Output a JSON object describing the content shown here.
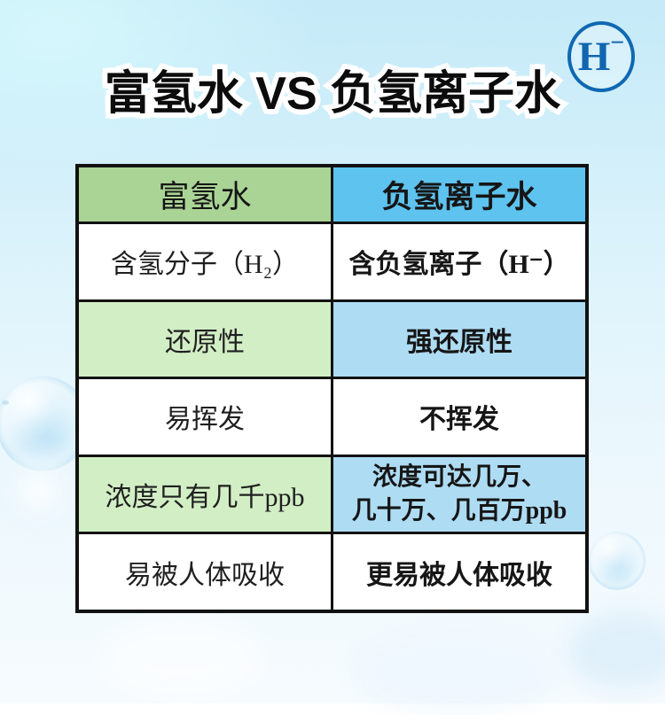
{
  "title": "富氢水 VS 负氢离子水",
  "badge": {
    "letter": "H",
    "charge": "−"
  },
  "chart_data": {
    "type": "table",
    "title": "富氢水 VS 负氢离子水",
    "columns": [
      "富氢水",
      "负氢离子水"
    ],
    "rows": [
      [
        "含氢分子（H₂）",
        "含负氢离子（H⁻）"
      ],
      [
        "还原性",
        "强还原性"
      ],
      [
        "易挥发",
        "不挥发"
      ],
      [
        "浓度只有几千ppb",
        "浓度可达几万、几十万、几百万ppb"
      ],
      [
        "易被人体吸收",
        "更易被人体吸收"
      ]
    ]
  },
  "table_display": {
    "row4_right_line1": "浓度可达几万、",
    "row4_right_line2": "几十万、几百万ppb"
  },
  "colors": {
    "background_top": "#c6eaf8",
    "background_bottom": "#f6fbfe",
    "header_green": "#aad496",
    "header_blue": "#5ec3ef",
    "row_green": "#d2eec4",
    "row_blue": "#aedcf3",
    "border": "#121212",
    "badge_blue": "#1068b3",
    "title_text": "#0c0c0c"
  }
}
